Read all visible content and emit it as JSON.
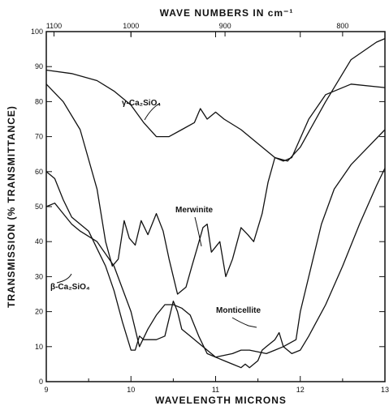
{
  "chart_data": {
    "type": "line",
    "title": "WAVE NUMBERS IN cm⁻¹",
    "xlabel": "WAVELENGTH MICRONS",
    "ylabel": "TRANSMISSION (% TRANSMITTANCE)",
    "xlim": [
      9,
      13
    ],
    "ylim": [
      0,
      100
    ],
    "x_ticks": [
      9,
      10,
      11,
      12,
      13
    ],
    "y_ticks": [
      0,
      10,
      20,
      30,
      40,
      50,
      60,
      70,
      80,
      90,
      100
    ],
    "top_axis_ticks": [
      "1100",
      "1000",
      "900",
      "800"
    ],
    "grid": false,
    "series": [
      {
        "name": "γ-Ca₂SiO₄",
        "x": [
          9.0,
          9.3,
          9.6,
          9.8,
          10.0,
          10.15,
          10.3,
          10.45,
          10.6,
          10.75,
          10.82,
          10.9,
          11.0,
          11.1,
          11.3,
          11.5,
          11.7,
          11.85,
          12.0,
          12.3,
          12.6,
          12.9,
          13.0
        ],
        "y": [
          89,
          88,
          86,
          83,
          79,
          74,
          70,
          70,
          72,
          74,
          78,
          75,
          77,
          75,
          72,
          68,
          64,
          63,
          67,
          80,
          92,
          97,
          98
        ]
      },
      {
        "name": "Merwinite",
        "x": [
          9.0,
          9.2,
          9.4,
          9.6,
          9.7,
          9.78,
          9.85,
          9.92,
          9.98,
          10.05,
          10.12,
          10.2,
          10.3,
          10.38,
          10.45,
          10.55,
          10.65,
          10.72,
          10.78,
          10.85,
          10.9,
          10.95,
          11.05,
          11.12,
          11.2,
          11.3,
          11.38,
          11.45,
          11.55,
          11.62,
          11.7,
          11.8,
          11.9,
          12.1,
          12.3,
          12.6,
          13.0
        ],
        "y": [
          85,
          80,
          72,
          55,
          40,
          33,
          35,
          46,
          41,
          39,
          46,
          42,
          48,
          43,
          35,
          25,
          27,
          33,
          38,
          44,
          45,
          37,
          40,
          30,
          35,
          44,
          42,
          40,
          48,
          57,
          64,
          63,
          64,
          75,
          82,
          85,
          84
        ]
      },
      {
        "name": "Monticellite",
        "x": [
          9.0,
          9.1,
          9.2,
          9.3,
          9.4,
          9.6,
          9.8,
          10.0,
          10.1,
          10.2,
          10.3,
          10.4,
          10.5,
          10.6,
          10.7,
          10.8,
          10.9,
          11.0,
          11.2,
          11.3,
          11.4,
          11.6,
          11.7,
          11.8,
          11.95,
          12.0,
          12.1,
          12.25,
          12.4,
          12.6,
          12.8,
          13.0
        ],
        "y": [
          50,
          51,
          48,
          45,
          43,
          40,
          33,
          20,
          10,
          15,
          19,
          22,
          22,
          21,
          19,
          13,
          8,
          7,
          8,
          9,
          9,
          8,
          9,
          10,
          12,
          20,
          30,
          45,
          55,
          62,
          67,
          72
        ]
      },
      {
        "name": "β-Ca₂SiO₄",
        "x": [
          9.0,
          9.1,
          9.2,
          9.3,
          9.4,
          9.5,
          9.6,
          9.7,
          9.8,
          9.9,
          10.0,
          10.05,
          10.1,
          10.15,
          10.2,
          10.3,
          10.4,
          10.5,
          10.55,
          10.6,
          10.7,
          10.8,
          10.9,
          11.0,
          11.1,
          11.2,
          11.3,
          11.35,
          11.4,
          11.5,
          11.55,
          11.6,
          11.7,
          11.75,
          11.8,
          11.9,
          12.0,
          12.1,
          12.3,
          12.5,
          12.7,
          12.9,
          13.0
        ],
        "y": [
          60,
          58,
          52,
          47,
          45,
          43,
          38,
          33,
          26,
          17,
          9,
          9,
          13,
          12,
          12,
          12,
          13,
          23,
          20,
          15,
          13,
          11,
          9,
          7,
          6,
          5,
          4,
          5,
          4,
          6,
          9,
          10,
          12,
          14,
          10,
          8,
          9,
          13,
          22,
          33,
          45,
          56,
          61
        ]
      }
    ]
  }
}
